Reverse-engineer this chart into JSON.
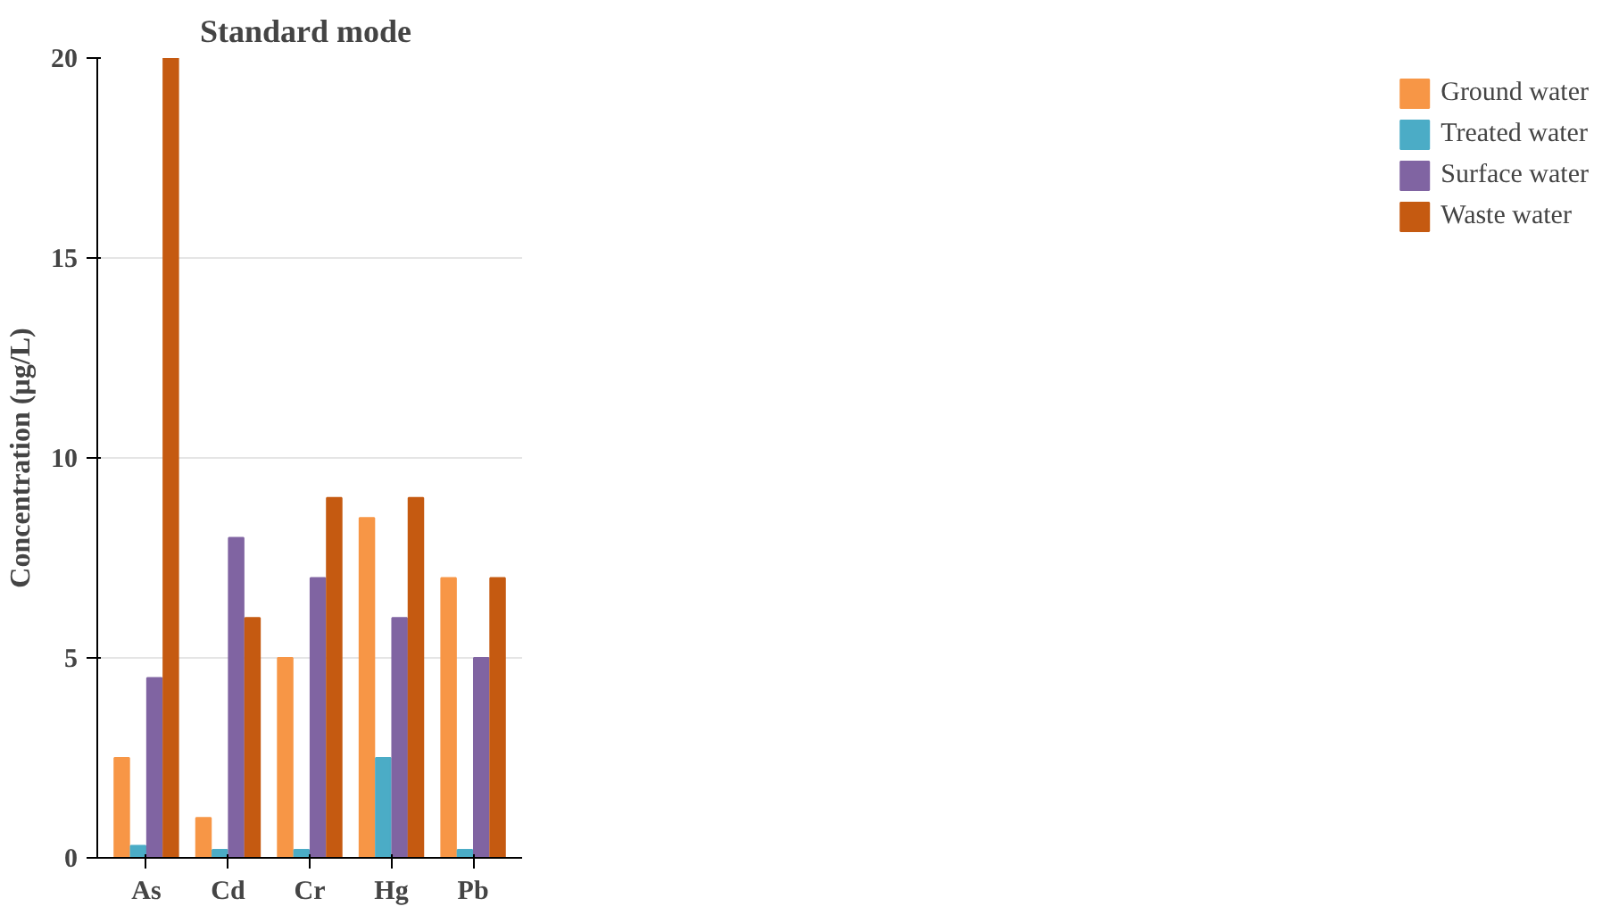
{
  "chart_data": {
    "type": "bar",
    "title": "Standard  mode",
    "ylabel": "Concentration (µg/L)",
    "categories": [
      "As",
      "Cd",
      "Cr",
      "Hg",
      "Pb"
    ],
    "series": [
      {
        "name": "Ground water",
        "color": "#f79646",
        "values": [
          2.5,
          1,
          5,
          8.5,
          7
        ]
      },
      {
        "name": "Treated water",
        "color": "#4bacc6",
        "values": [
          0.3,
          0.2,
          0.2,
          2.5,
          0.2
        ]
      },
      {
        "name": "Surface water",
        "color": "#8064a2",
        "values": [
          4.5,
          8,
          7,
          6,
          5
        ]
      },
      {
        "name": "Waste water",
        "color": "#c55a11",
        "values": [
          20,
          6,
          9,
          9,
          7
        ]
      }
    ],
    "ylim": [
      0,
      20
    ],
    "yticks": [
      0,
      5,
      10,
      15,
      20
    ],
    "grid": "y",
    "legend": "right"
  }
}
